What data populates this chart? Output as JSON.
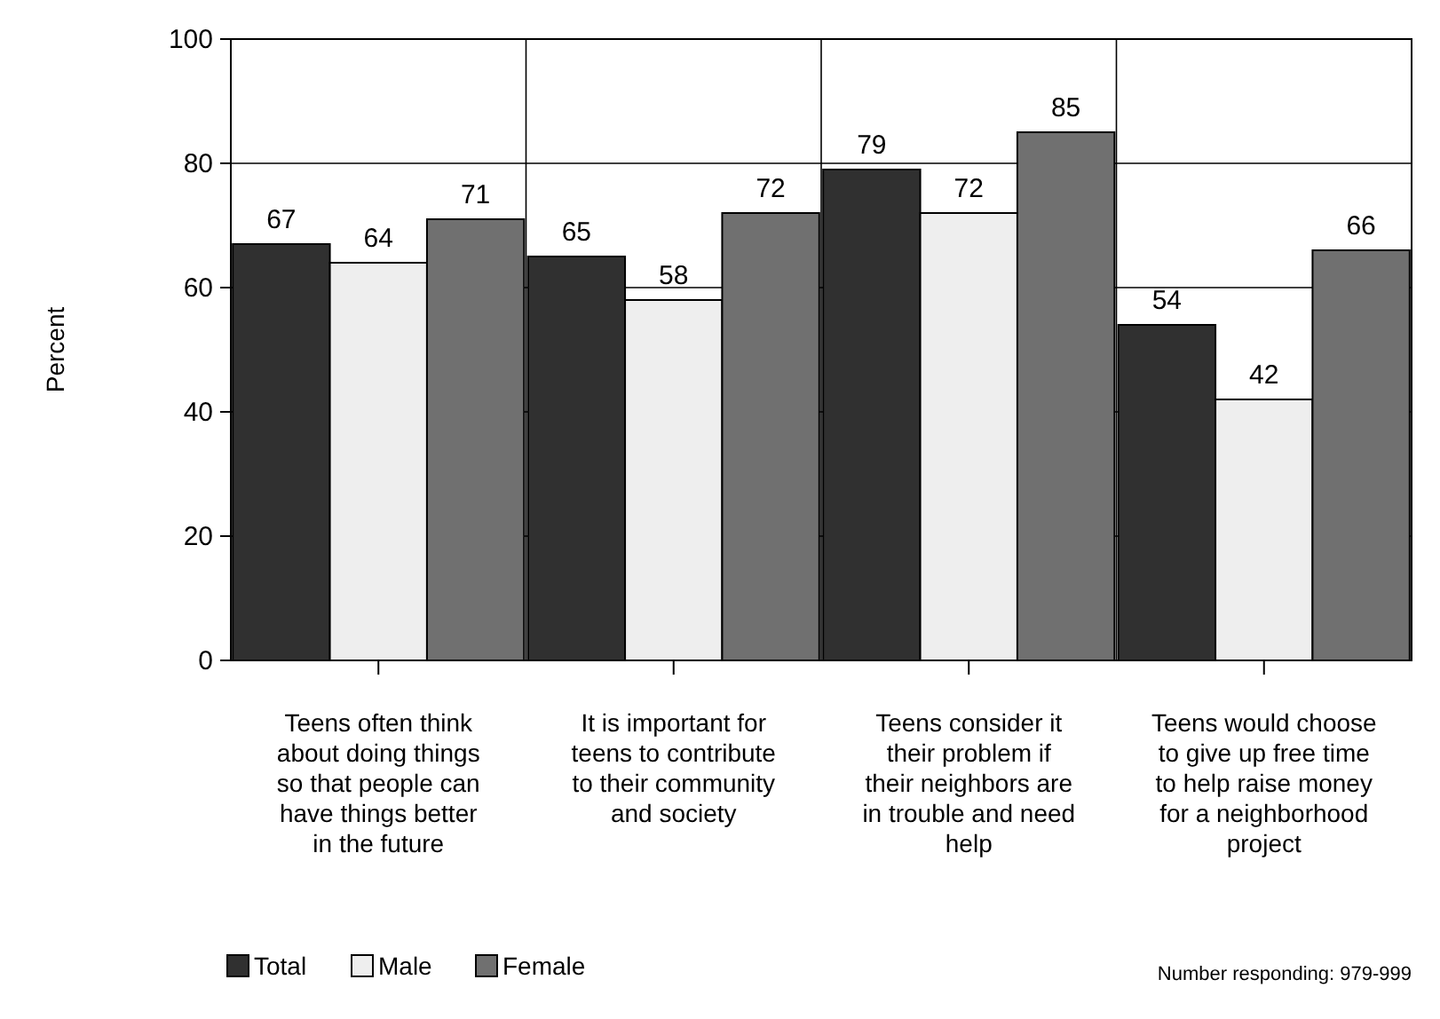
{
  "chart_data": {
    "type": "bar",
    "ylabel": "Percent",
    "categories": [
      "Teens often think about doing things so that people can have things better in the future",
      "It is important for teens to contribute to their community and society",
      "Teens consider it their problem if their neighbors are in trouble and need help",
      "Teens would choose to give up free time to help raise money for a neighborhood project"
    ],
    "series": [
      {
        "name": "Total",
        "color": "#303030",
        "values": [
          67,
          65,
          79,
          54
        ]
      },
      {
        "name": "Male",
        "color": "#eeeeee",
        "values": [
          64,
          58,
          72,
          42
        ]
      },
      {
        "name": "Female",
        "color": "#707070",
        "values": [
          71,
          72,
          85,
          66
        ]
      }
    ],
    "ylim": [
      0,
      100
    ],
    "yticks": [
      0,
      20,
      40,
      60,
      80,
      100
    ],
    "grid": true,
    "data_labels": true,
    "legend": "bottom left",
    "annotations": [
      "Number responding:  979-999"
    ]
  }
}
